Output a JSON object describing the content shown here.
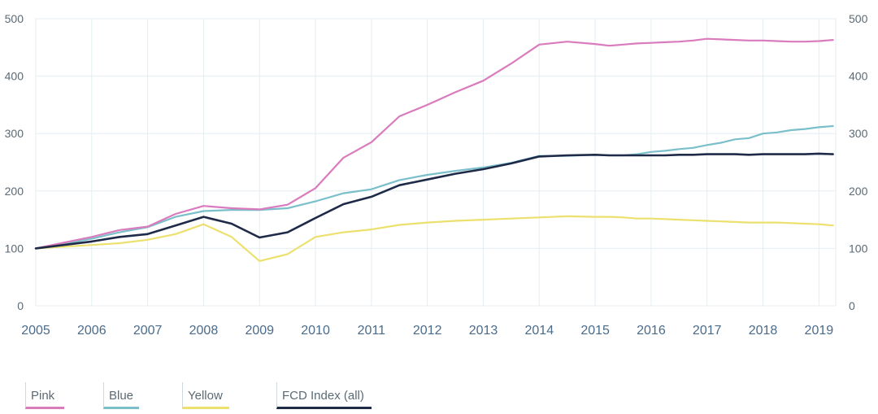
{
  "chart_data": {
    "type": "line",
    "x_ticks": [
      "2005",
      "2006",
      "2007",
      "2008",
      "2009",
      "2010",
      "2011",
      "2012",
      "2013",
      "2014",
      "2015",
      "2016",
      "2017",
      "2018",
      "2019"
    ],
    "y_ticks_left": [
      "0",
      "100",
      "200",
      "300",
      "400",
      "500"
    ],
    "y_ticks_right": [
      "0",
      "100",
      "200",
      "300",
      "400",
      "500"
    ],
    "ylim": [
      0,
      500
    ],
    "xlim": [
      2005,
      2019.3
    ],
    "grid": true,
    "legend_position": "bottom-left",
    "x": [
      2005,
      2005.5,
      2006,
      2006.5,
      2007,
      2007.5,
      2008,
      2008.5,
      2009,
      2009.5,
      2010,
      2010.5,
      2011,
      2011.5,
      2012,
      2012.5,
      2013,
      2013.5,
      2014,
      2014.5,
      2015,
      2015.25,
      2015.5,
      2015.75,
      2016,
      2016.25,
      2016.5,
      2016.75,
      2017,
      2017.25,
      2017.5,
      2017.75,
      2018,
      2018.25,
      2018.5,
      2018.75,
      2019,
      2019.25
    ],
    "series": [
      {
        "name": "Pink",
        "color": "#d97bbd",
        "values": [
          100,
          110,
          120,
          132,
          138,
          160,
          174,
          170,
          168,
          176,
          205,
          258,
          285,
          330,
          350,
          372,
          392,
          422,
          455,
          460,
          456,
          453,
          455,
          457,
          458,
          459,
          460,
          462,
          465,
          464,
          463,
          462,
          462,
          461,
          460,
          460,
          461,
          463
        ]
      },
      {
        "name": "Blue",
        "color": "#7bbfcb",
        "values": [
          100,
          108,
          117,
          128,
          137,
          155,
          165,
          167,
          167,
          170,
          182,
          196,
          203,
          219,
          228,
          235,
          241,
          249,
          261,
          261,
          263,
          262,
          262,
          264,
          268,
          270,
          273,
          275,
          280,
          284,
          290,
          292,
          300,
          302,
          306,
          308,
          311,
          313
        ]
      },
      {
        "name": "Yellow",
        "color": "#ece06f",
        "values": [
          100,
          103,
          106,
          109,
          115,
          125,
          142,
          120,
          78,
          90,
          120,
          128,
          133,
          141,
          145,
          148,
          150,
          152,
          154,
          156,
          155,
          155,
          154,
          152,
          152,
          151,
          150,
          149,
          148,
          147,
          146,
          145,
          145,
          145,
          144,
          143,
          142,
          140
        ]
      },
      {
        "name": "FCD Index (all)",
        "color": "#1e2a48",
        "values": [
          100,
          106,
          112,
          120,
          125,
          140,
          155,
          143,
          119,
          128,
          153,
          177,
          190,
          210,
          220,
          230,
          238,
          248,
          260,
          262,
          263,
          262,
          262,
          262,
          262,
          262,
          263,
          263,
          264,
          264,
          264,
          263,
          264,
          264,
          264,
          264,
          265,
          264
        ]
      }
    ]
  }
}
